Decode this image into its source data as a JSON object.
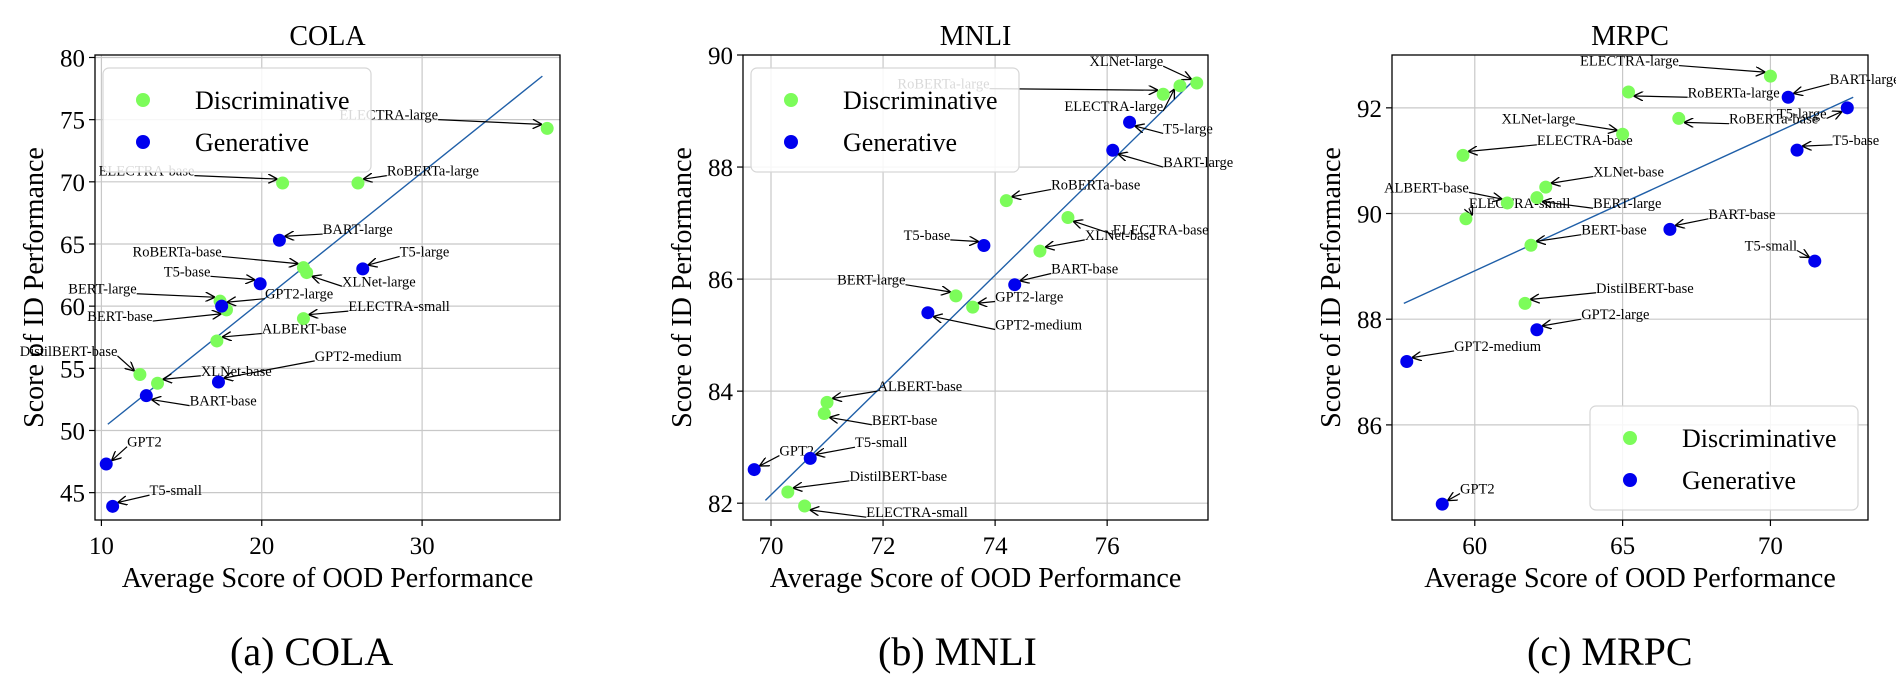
{
  "captions": [
    "(a)  COLA",
    "(b)  MNLI",
    "(c)  MRPC"
  ],
  "colors": {
    "discriminative": "#7CFC5A",
    "generative": "#0000EE",
    "trend": "#1f5fa8"
  },
  "chart_data": [
    {
      "type": "scatter",
      "title": "COLA",
      "xlabel": "Average Score of OOD Performance",
      "ylabel": "Score of ID Performance",
      "xlim": [
        9.6,
        38.6
      ],
      "ylim": [
        42.8,
        80.2
      ],
      "xticks": [
        10,
        20,
        30
      ],
      "yticks": [
        45,
        50,
        55,
        60,
        65,
        70,
        75,
        80
      ],
      "grid": true,
      "legend_position": "top-left",
      "legend": [
        "Discriminative",
        "Generative"
      ],
      "trend": [
        [
          10.4,
          50.5
        ],
        [
          37.5,
          78.5
        ]
      ],
      "points": [
        {
          "label": "ELECTRA-large",
          "x": 37.8,
          "y": 74.3,
          "group": "Discriminative",
          "lx": 31.0,
          "ly": 75.0
        },
        {
          "label": "ELECTRA-base",
          "x": 21.3,
          "y": 69.9,
          "group": "Discriminative",
          "lx": 15.8,
          "ly": 70.5
        },
        {
          "label": "RoBERTa-large",
          "x": 26.0,
          "y": 69.9,
          "group": "Discriminative",
          "lx": 27.8,
          "ly": 70.5
        },
        {
          "label": "RoBERTa-base",
          "x": 22.6,
          "y": 63.1,
          "group": "Discriminative",
          "lx": 17.5,
          "ly": 64.0
        },
        {
          "label": "XLNet-large",
          "x": 22.8,
          "y": 62.7,
          "group": "Discriminative",
          "lx": 25.0,
          "ly": 61.6
        },
        {
          "label": "BERT-large",
          "x": 17.4,
          "y": 60.4,
          "group": "Discriminative",
          "lx": 12.2,
          "ly": 61.0
        },
        {
          "label": "BERT-base",
          "x": 17.8,
          "y": 59.7,
          "group": "Discriminative",
          "lx": 13.2,
          "ly": 58.8
        },
        {
          "label": "ELECTRA-small",
          "x": 22.6,
          "y": 59.0,
          "group": "Discriminative",
          "lx": 25.4,
          "ly": 59.6
        },
        {
          "label": "ALBERT-base",
          "x": 17.2,
          "y": 57.2,
          "group": "Discriminative",
          "lx": 20.0,
          "ly": 57.8
        },
        {
          "label": "DistilBERT-base",
          "x": 12.4,
          "y": 54.5,
          "group": "Discriminative",
          "lx": 11.0,
          "ly": 56.0
        },
        {
          "label": "XLNet-base",
          "x": 13.5,
          "y": 53.8,
          "group": "Discriminative",
          "lx": 16.2,
          "ly": 54.4
        },
        {
          "label": "BART-large",
          "x": 21.1,
          "y": 65.3,
          "group": "Generative",
          "lx": 23.8,
          "ly": 65.8
        },
        {
          "label": "T5-large",
          "x": 26.3,
          "y": 63.0,
          "group": "Generative",
          "lx": 28.6,
          "ly": 64.0
        },
        {
          "label": "T5-base",
          "x": 19.9,
          "y": 61.8,
          "group": "Generative",
          "lx": 16.8,
          "ly": 62.4
        },
        {
          "label": "GPT2-large",
          "x": 17.5,
          "y": 60.0,
          "group": "Generative",
          "lx": 20.2,
          "ly": 60.6
        },
        {
          "label": "GPT2-medium",
          "x": 17.3,
          "y": 53.9,
          "group": "Generative",
          "lx": 23.3,
          "ly": 55.6
        },
        {
          "label": "BART-base",
          "x": 12.8,
          "y": 52.8,
          "group": "Generative",
          "lx": 15.5,
          "ly": 52.0
        },
        {
          "label": "GPT2",
          "x": 10.3,
          "y": 47.3,
          "group": "Generative",
          "lx": 11.6,
          "ly": 48.7
        },
        {
          "label": "T5-small",
          "x": 10.7,
          "y": 43.9,
          "group": "Generative",
          "lx": 13.0,
          "ly": 44.8
        }
      ]
    },
    {
      "type": "scatter",
      "title": "MNLI",
      "xlabel": "Average Score of OOD Performance",
      "ylabel": "Score of ID Performance",
      "xlim": [
        69.5,
        77.8
      ],
      "ylim": [
        81.7,
        90.0
      ],
      "xticks": [
        70,
        72,
        74,
        76
      ],
      "yticks": [
        82,
        84,
        86,
        88,
        90
      ],
      "grid": true,
      "legend_position": "top-left",
      "legend": [
        "Discriminative",
        "Generative"
      ],
      "trend": [
        [
          69.9,
          82.05
        ],
        [
          77.6,
          89.6
        ]
      ],
      "points": [
        {
          "label": "XLNet-large",
          "x": 77.6,
          "y": 89.5,
          "group": "Discriminative",
          "lx": 77.0,
          "ly": 89.8
        },
        {
          "label": "RoBERTa-large",
          "x": 77.0,
          "y": 89.3,
          "group": "Discriminative",
          "lx": 73.9,
          "ly": 89.4
        },
        {
          "label": "ELECTRA-large",
          "x": 77.3,
          "y": 89.45,
          "group": "Discriminative",
          "lx": 77.0,
          "ly": 89.0
        },
        {
          "label": "RoBERTa-base",
          "x": 74.2,
          "y": 87.4,
          "group": "Discriminative",
          "lx": 75.0,
          "ly": 87.6
        },
        {
          "label": "ELECTRA-base",
          "x": 75.3,
          "y": 87.1,
          "group": "Discriminative",
          "lx": 76.1,
          "ly": 86.8
        },
        {
          "label": "XLNet-base",
          "x": 74.8,
          "y": 86.5,
          "group": "Discriminative",
          "lx": 75.6,
          "ly": 86.7
        },
        {
          "label": "BERT-large",
          "x": 73.3,
          "y": 85.7,
          "group": "Discriminative",
          "lx": 72.4,
          "ly": 85.9
        },
        {
          "label": "GPT2-large",
          "x": 73.6,
          "y": 85.5,
          "group": "Discriminative",
          "lx": 74.0,
          "ly": 85.6
        },
        {
          "label": "ALBERT-base",
          "x": 71.0,
          "y": 83.8,
          "group": "Discriminative",
          "lx": 71.9,
          "ly": 84.0
        },
        {
          "label": "BERT-base",
          "x": 70.95,
          "y": 83.6,
          "group": "Discriminative",
          "lx": 71.8,
          "ly": 83.4
        },
        {
          "label": "DistilBERT-base",
          "x": 70.3,
          "y": 82.2,
          "group": "Discriminative",
          "lx": 71.4,
          "ly": 82.4
        },
        {
          "label": "ELECTRA-small",
          "x": 70.6,
          "y": 81.95,
          "group": "Discriminative",
          "lx": 71.7,
          "ly": 81.75
        },
        {
          "label": "T5-large",
          "x": 76.4,
          "y": 88.8,
          "group": "Generative",
          "lx": 77.0,
          "ly": 88.6
        },
        {
          "label": "BART-large",
          "x": 76.1,
          "y": 88.3,
          "group": "Generative",
          "lx": 77.0,
          "ly": 88.0
        },
        {
          "label": "T5-base",
          "x": 73.8,
          "y": 86.6,
          "group": "Generative",
          "lx": 73.2,
          "ly": 86.7
        },
        {
          "label": "BART-base",
          "x": 74.35,
          "y": 85.9,
          "group": "Generative",
          "lx": 75.0,
          "ly": 86.1
        },
        {
          "label": "GPT2-medium",
          "x": 72.8,
          "y": 85.4,
          "group": "Generative",
          "lx": 74.0,
          "ly": 85.1
        },
        {
          "label": "T5-small",
          "x": 70.7,
          "y": 82.8,
          "group": "Generative",
          "lx": 71.5,
          "ly": 83.0
        },
        {
          "label": "GPT2",
          "x": 69.7,
          "y": 82.6,
          "group": "Generative",
          "lx": 70.15,
          "ly": 82.85
        }
      ]
    },
    {
      "type": "scatter",
      "title": "MRPC",
      "xlabel": "Average Score of OOD Performance",
      "ylabel": "Score of ID Performance",
      "xlim": [
        57.2,
        73.3
      ],
      "ylim": [
        84.2,
        93.0
      ],
      "xticks": [
        60,
        65,
        70
      ],
      "yticks": [
        86,
        88,
        90,
        92
      ],
      "grid": true,
      "legend_position": "bottom-right",
      "legend": [
        "Discriminative",
        "Generative"
      ],
      "trend": [
        [
          57.6,
          88.3
        ],
        [
          72.8,
          92.2
        ]
      ],
      "points": [
        {
          "label": "ELECTRA-large",
          "x": 70.0,
          "y": 92.6,
          "group": "Discriminative",
          "lx": 66.9,
          "ly": 92.8
        },
        {
          "label": "RoBERTa-large",
          "x": 65.2,
          "y": 92.3,
          "group": "Discriminative",
          "lx": 67.2,
          "ly": 92.2
        },
        {
          "label": "RoBERTa-base",
          "x": 66.9,
          "y": 91.8,
          "group": "Discriminative",
          "lx": 68.6,
          "ly": 91.7
        },
        {
          "label": "XLNet-large",
          "x": 65.0,
          "y": 91.5,
          "group": "Discriminative",
          "lx": 63.4,
          "ly": 91.7
        },
        {
          "label": "ELECTRA-base",
          "x": 59.6,
          "y": 91.1,
          "group": "Discriminative",
          "lx": 62.1,
          "ly": 91.3
        },
        {
          "label": "XLNet-base",
          "x": 62.4,
          "y": 90.5,
          "group": "Discriminative",
          "lx": 64.0,
          "ly": 90.7
        },
        {
          "label": "ALBERT-base",
          "x": 61.1,
          "y": 90.2,
          "group": "Discriminative",
          "lx": 59.8,
          "ly": 90.4
        },
        {
          "label": "BERT-large",
          "x": 62.1,
          "y": 90.3,
          "group": "Discriminative",
          "lx": 64.0,
          "ly": 90.1
        },
        {
          "label": "ELECTRA-small",
          "x": 59.7,
          "y": 89.9,
          "group": "Discriminative",
          "lx": 59.8,
          "ly": 90.1
        },
        {
          "label": "BERT-base",
          "x": 61.9,
          "y": 89.4,
          "group": "Discriminative",
          "lx": 63.6,
          "ly": 89.6
        },
        {
          "label": "DistilBERT-base",
          "x": 61.7,
          "y": 88.3,
          "group": "Discriminative",
          "lx": 64.1,
          "ly": 88.5
        },
        {
          "label": "BART-large",
          "x": 70.6,
          "y": 92.2,
          "group": "Generative",
          "lx": 72.0,
          "ly": 92.45
        },
        {
          "label": "T5-large",
          "x": 72.6,
          "y": 92.0,
          "group": "Generative",
          "lx": 71.9,
          "ly": 91.8
        },
        {
          "label": "T5-base",
          "x": 70.9,
          "y": 91.2,
          "group": "Generative",
          "lx": 72.1,
          "ly": 91.3
        },
        {
          "label": "BART-base",
          "x": 66.6,
          "y": 89.7,
          "group": "Generative",
          "lx": 67.9,
          "ly": 89.9
        },
        {
          "label": "T5-small",
          "x": 71.5,
          "y": 89.1,
          "group": "Generative",
          "lx": 70.9,
          "ly": 89.3
        },
        {
          "label": "GPT2-large",
          "x": 62.1,
          "y": 87.8,
          "group": "Generative",
          "lx": 63.6,
          "ly": 88.0
        },
        {
          "label": "GPT2-medium",
          "x": 57.7,
          "y": 87.2,
          "group": "Generative",
          "lx": 59.3,
          "ly": 87.4
        },
        {
          "label": "GPT2",
          "x": 58.9,
          "y": 84.5,
          "group": "Generative",
          "lx": 59.5,
          "ly": 84.7
        }
      ]
    }
  ]
}
